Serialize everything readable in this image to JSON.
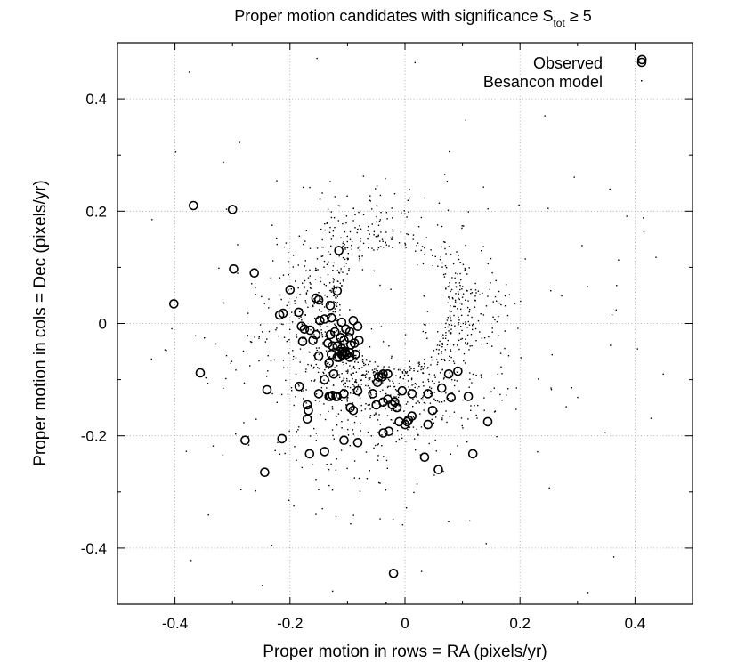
{
  "chart_data": {
    "type": "scatter",
    "title_main": "Proper motion candidates with significance S",
    "title_sub": "tot",
    "title_tail": " ≥ 5",
    "xlabel": "Proper motion in rows = RA (pixels/yr)",
    "ylabel": "Proper motion in cols = Dec (pixels/yr)",
    "xlim": [
      -0.5,
      0.5
    ],
    "ylim": [
      -0.5,
      0.5
    ],
    "xticks": [
      -0.4,
      -0.2,
      0,
      0.2,
      0.4
    ],
    "xtick_labels": [
      "-0.4",
      "-0.2",
      "0",
      "0.2",
      "0.4"
    ],
    "yticks": [
      -0.4,
      -0.2,
      0,
      0.2,
      0.4
    ],
    "ytick_labels": [
      "-0.4",
      "-0.2",
      "0",
      "0.2",
      "0.4"
    ],
    "grid": true,
    "legend_position": "top-right",
    "series": [
      {
        "name": "Observed",
        "marker": "open-circle",
        "x": [
          0.412,
          -0.368,
          -0.3,
          -0.298,
          -0.262,
          -0.402,
          -0.2,
          -0.115,
          -0.155,
          -0.15,
          -0.13,
          -0.185,
          -0.212,
          -0.218,
          -0.18,
          -0.175,
          -0.165,
          -0.148,
          -0.14,
          -0.128,
          -0.118,
          -0.11,
          -0.103,
          -0.096,
          -0.09,
          -0.082,
          -0.13,
          -0.155,
          -0.122,
          -0.112,
          -0.106,
          -0.098,
          -0.178,
          -0.16,
          -0.134,
          -0.126,
          -0.118,
          -0.11,
          -0.104,
          -0.094,
          -0.088,
          -0.08,
          -0.15,
          -0.128,
          -0.114,
          -0.108,
          -0.102,
          -0.096,
          -0.132,
          -0.118,
          -0.11,
          -0.104,
          -0.096,
          -0.086,
          -0.14,
          -0.124,
          -0.114,
          -0.108,
          -0.356,
          -0.13,
          -0.118,
          -0.106,
          -0.046,
          -0.038,
          -0.03,
          -0.184,
          -0.15,
          -0.132,
          -0.126,
          -0.12,
          -0.082,
          -0.056,
          -0.048,
          -0.04,
          -0.03,
          -0.018,
          -0.005,
          0.012,
          0.04,
          0.064,
          0.092,
          0.076,
          -0.24,
          -0.17,
          -0.168,
          -0.095,
          -0.09,
          -0.05,
          -0.038,
          -0.022,
          -0.014,
          0.004,
          0.012,
          0.048,
          0.08,
          0.04,
          -0.01,
          0.0,
          0.006,
          0.11,
          0.144,
          -0.17,
          -0.038,
          -0.028,
          -0.278,
          -0.214,
          -0.106,
          -0.082,
          -0.14,
          -0.166,
          0.034,
          0.118,
          0.058,
          -0.244,
          -0.02
        ],
        "y": [
          0.47,
          0.21,
          0.203,
          0.097,
          0.09,
          0.035,
          0.06,
          0.13,
          0.045,
          0.042,
          0.032,
          0.02,
          0.018,
          0.015,
          -0.005,
          -0.01,
          -0.012,
          0.005,
          0.008,
          0.01,
          0.058,
          0.002,
          -0.01,
          -0.015,
          0.005,
          -0.005,
          -0.02,
          -0.02,
          -0.015,
          -0.025,
          -0.03,
          -0.025,
          -0.032,
          -0.03,
          -0.035,
          -0.04,
          -0.04,
          -0.045,
          -0.05,
          -0.038,
          -0.035,
          -0.03,
          -0.058,
          -0.055,
          -0.05,
          -0.05,
          -0.055,
          -0.06,
          -0.07,
          -0.06,
          -0.055,
          -0.052,
          -0.052,
          -0.055,
          -0.1,
          -0.09,
          -0.06,
          -0.055,
          -0.088,
          -0.13,
          -0.13,
          -0.125,
          -0.095,
          -0.09,
          -0.09,
          -0.112,
          -0.125,
          -0.13,
          -0.128,
          -0.13,
          -0.12,
          -0.125,
          -0.105,
          -0.095,
          -0.135,
          -0.14,
          -0.12,
          -0.125,
          -0.125,
          -0.115,
          -0.085,
          -0.09,
          -0.118,
          -0.145,
          -0.155,
          -0.15,
          -0.155,
          -0.145,
          -0.14,
          -0.145,
          -0.15,
          -0.175,
          -0.165,
          -0.155,
          -0.132,
          -0.18,
          -0.175,
          -0.18,
          -0.172,
          -0.13,
          -0.175,
          -0.17,
          -0.195,
          -0.192,
          -0.208,
          -0.205,
          -0.208,
          -0.212,
          -0.228,
          -0.232,
          -0.238,
          -0.232,
          -0.26,
          -0.265,
          -0.445
        ]
      },
      {
        "name": "Besancon model",
        "marker": "dot"
      }
    ]
  }
}
